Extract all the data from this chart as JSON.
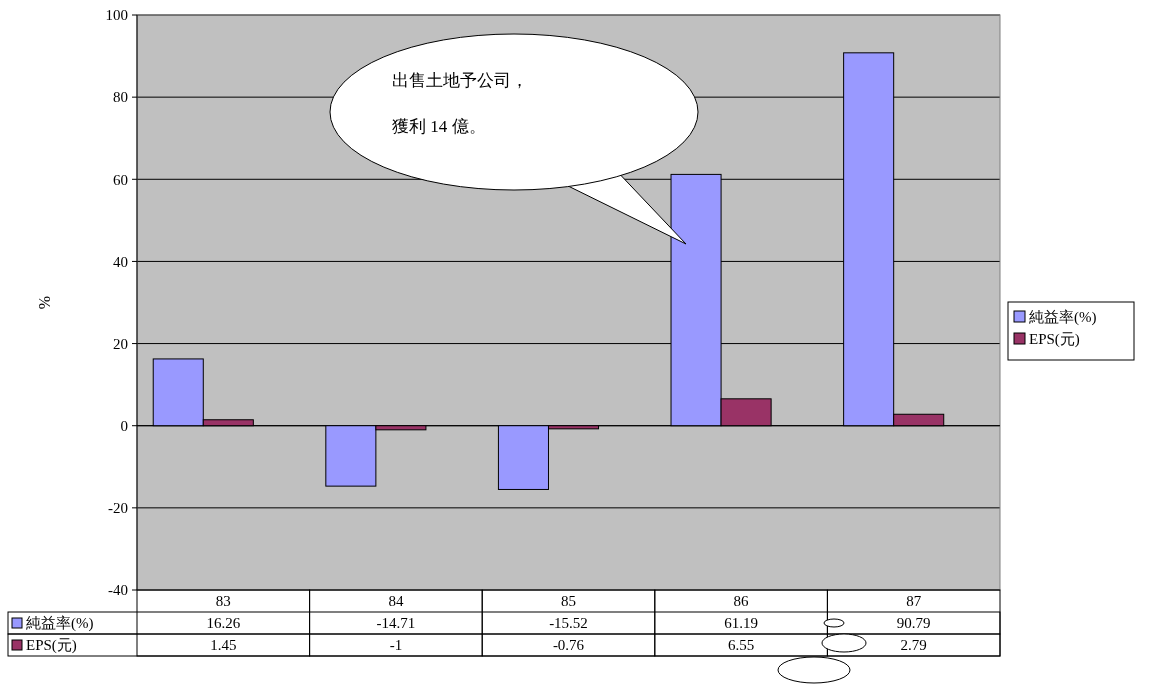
{
  "chart_data": {
    "type": "bar",
    "ylabel": "%",
    "categories": [
      "83",
      "84",
      "85",
      "86",
      "87"
    ],
    "series": [
      {
        "name": "純益率(%)",
        "color": "#9999ff",
        "values": [
          16.26,
          -14.71,
          -15.52,
          61.19,
          90.79
        ]
      },
      {
        "name": "EPS(元)",
        "color": "#993366",
        "values": [
          1.45,
          -1,
          -0.76,
          6.55,
          2.79
        ]
      }
    ],
    "ylim": [
      -40,
      100
    ],
    "yticks": [
      -40,
      -20,
      0,
      20,
      40,
      60,
      80,
      100
    ],
    "grid": "y",
    "legend": "right",
    "data_labels": true,
    "annotations": [
      "出售土地予公司，獲利 14 億。"
    ]
  }
}
